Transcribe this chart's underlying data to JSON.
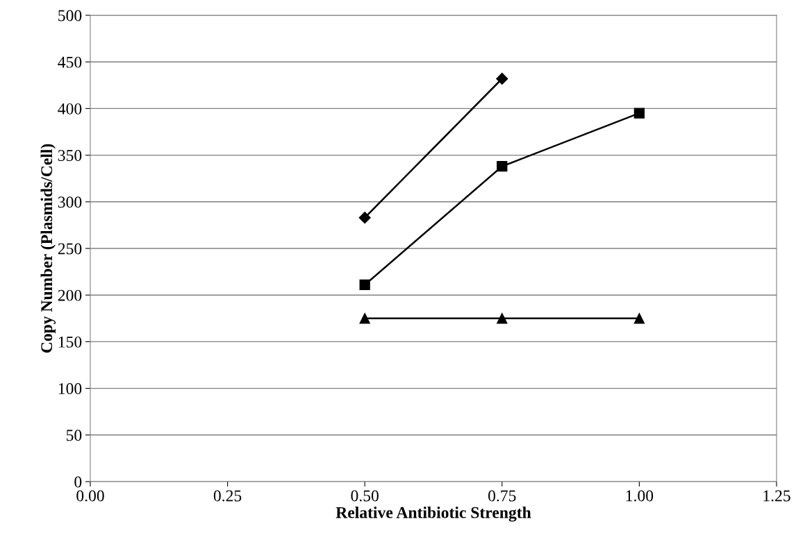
{
  "chart_data": {
    "type": "line",
    "xlabel": "Relative Antibiotic Strength",
    "ylabel": "Copy Number (Plasmids/Cell)",
    "xlim": [
      0,
      1.25
    ],
    "xticks": [
      {
        "value": 0,
        "label": "0.00"
      },
      {
        "value": 0.25,
        "label": "0.25"
      },
      {
        "value": 0.5,
        "label": "0.50"
      },
      {
        "value": 0.75,
        "label": "0.75"
      },
      {
        "value": 1,
        "label": "1.00"
      },
      {
        "value": 1.25,
        "label": "1.25"
      }
    ],
    "ylim": [
      0,
      500
    ],
    "yticks": [
      0,
      50,
      100,
      150,
      200,
      250,
      300,
      350,
      400,
      450,
      500
    ],
    "grid": "y",
    "series": [
      {
        "color": "#000000",
        "marker": "diamond",
        "x": [
          0.5,
          0.75
        ],
        "values": [
          283,
          432
        ]
      },
      {
        "color": "#000000",
        "marker": "square",
        "x": [
          0.5,
          0.75,
          1.0
        ],
        "values": [
          211,
          338,
          395
        ]
      },
      {
        "color": "#000000",
        "marker": "triangle",
        "x": [
          0.5,
          0.75,
          1.0
        ],
        "values": [
          175,
          175,
          175
        ]
      }
    ]
  }
}
